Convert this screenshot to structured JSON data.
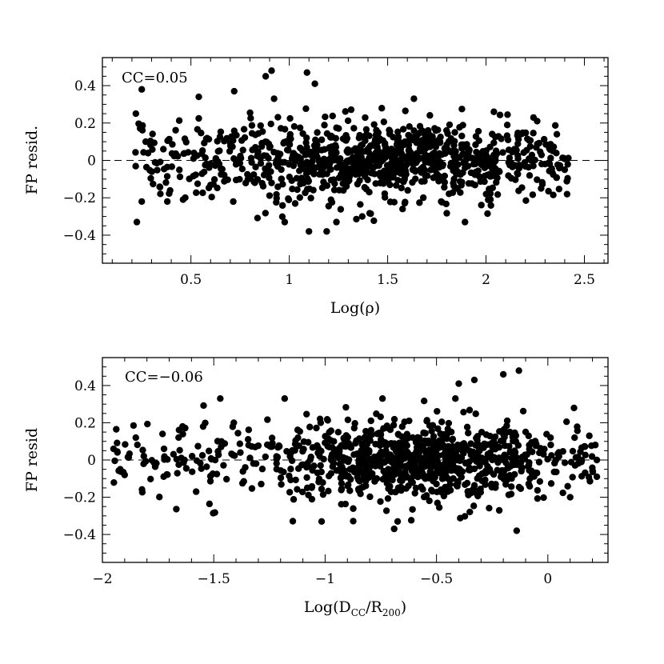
{
  "chart_data": [
    {
      "type": "scatter",
      "annotation": "CC=0.05",
      "xlabel": "Log(ρ)",
      "ylabel": "FP resid.",
      "xlim": [
        0.05,
        2.62
      ],
      "ylim": [
        -0.55,
        0.55
      ],
      "xticks": [
        0.5,
        1,
        1.5,
        2,
        2.5
      ],
      "xtick_labels": [
        "0.5",
        "1",
        "1.5",
        "2",
        "2.5"
      ],
      "yticks": [
        0.4,
        0.2,
        0,
        -0.2,
        -0.4
      ],
      "ytick_labels": [
        "0.4",
        "0.2",
        "0",
        "−0.2",
        "−0.4"
      ],
      "reference_line": {
        "y": 0,
        "style": "dashed"
      },
      "grid": false,
      "n_points_approx": 1000,
      "notable_points": [
        {
          "x": 0.22,
          "y": 0.25
        },
        {
          "x": 0.25,
          "y": 0.38
        },
        {
          "x": 0.27,
          "y": 0.1
        },
        {
          "x": 0.25,
          "y": -0.22
        },
        {
          "x": 0.36,
          "y": 0.06
        },
        {
          "x": 0.38,
          "y": -0.22
        },
        {
          "x": 0.46,
          "y": -0.21
        },
        {
          "x": 0.54,
          "y": 0.34
        },
        {
          "x": 0.72,
          "y": 0.37
        },
        {
          "x": 0.88,
          "y": 0.45
        },
        {
          "x": 0.91,
          "y": 0.48
        },
        {
          "x": 1.09,
          "y": 0.47
        },
        {
          "x": 1.13,
          "y": 0.41
        },
        {
          "x": 1.1,
          "y": -0.38
        },
        {
          "x": 1.19,
          "y": -0.38
        },
        {
          "x": 2.04,
          "y": 0.26
        },
        {
          "x": 2.26,
          "y": 0.21
        },
        {
          "x": 2.36,
          "y": 0.14
        },
        {
          "x": 2.4,
          "y": -0.05
        },
        {
          "x": 2.28,
          "y": -0.15
        }
      ],
      "distribution": {
        "x_range": [
          0.2,
          2.42
        ],
        "x_dense_range": [
          1.0,
          2.0
        ],
        "y_spread": 0.1
      }
    },
    {
      "type": "scatter",
      "annotation": "CC=−0.06",
      "xlabel_main": "Log(D",
      "xlabel_sub1": "CC",
      "xlabel_mid": "/R",
      "xlabel_sub2": "200",
      "xlabel_end": ")",
      "ylabel": "FP resid",
      "xlim": [
        -2.0,
        0.27
      ],
      "ylim": [
        -0.55,
        0.55
      ],
      "xticks": [
        -2,
        -1.5,
        -1,
        -0.5,
        0
      ],
      "xtick_labels": [
        "−2",
        "−1.5",
        "−1",
        "−0.5",
        "0"
      ],
      "yticks": [
        0.4,
        0.2,
        0,
        -0.2,
        -0.4
      ],
      "ytick_labels": [
        "0.4",
        "0.2",
        "0",
        "−0.2",
        "−0.4"
      ],
      "reference_line": {
        "y": 0,
        "style": "dashed"
      },
      "grid": false,
      "n_points_approx": 1000,
      "notable_points": [
        {
          "x": -1.95,
          "y": 0.06
        },
        {
          "x": -1.92,
          "y": -0.05
        },
        {
          "x": -1.85,
          "y": 0.12
        },
        {
          "x": -1.73,
          "y": 0.14
        },
        {
          "x": -1.64,
          "y": 0.18
        },
        {
          "x": -1.41,
          "y": 0.2
        },
        {
          "x": -1.02,
          "y": 0.2
        },
        {
          "x": -0.69,
          "y": -0.37
        },
        {
          "x": -0.4,
          "y": 0.41
        },
        {
          "x": -0.33,
          "y": 0.43
        },
        {
          "x": -0.2,
          "y": 0.46
        },
        {
          "x": -0.13,
          "y": 0.48
        },
        {
          "x": -0.14,
          "y": -0.38
        },
        {
          "x": 0.12,
          "y": 0.12
        },
        {
          "x": 0.22,
          "y": 0.0
        },
        {
          "x": 0.22,
          "y": -0.09
        }
      ],
      "distribution": {
        "x_range": [
          -1.95,
          0.22
        ],
        "x_dense_range": [
          -0.9,
          -0.25
        ],
        "y_spread": 0.1
      }
    }
  ]
}
